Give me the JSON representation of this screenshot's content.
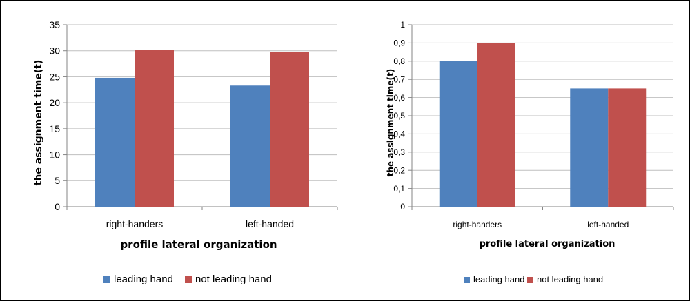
{
  "chart_data": [
    {
      "type": "bar",
      "categories": [
        "right-handers",
        "left-handed"
      ],
      "series": [
        {
          "name": "leading hand",
          "values": [
            24.8,
            23.3
          ]
        },
        {
          "name": "not leading hand",
          "values": [
            30.2,
            29.8
          ]
        }
      ],
      "yticks": [
        "0",
        "5",
        "10",
        "15",
        "20",
        "25",
        "30",
        "35"
      ],
      "ylim": [
        0,
        35
      ],
      "xlabel": "profile lateral organization",
      "ylabel": "the assignment time(t)",
      "grid": true,
      "legend_position": "bottom",
      "colors": [
        "#4F81BD",
        "#C0504D"
      ]
    },
    {
      "type": "bar",
      "categories": [
        "right-handers",
        "left-handed"
      ],
      "series": [
        {
          "name": "leading hand",
          "values": [
            0.8,
            0.65
          ]
        },
        {
          "name": "not leading hand",
          "values": [
            0.9,
            0.65
          ]
        }
      ],
      "yticks": [
        "0",
        "0,1",
        "0,2",
        "0,3",
        "0,4",
        "0,5",
        "0,6",
        "0,7",
        "0,8",
        "0,9",
        "1"
      ],
      "ylim": [
        0,
        1
      ],
      "xlabel": "profile lateral organization",
      "ylabel": "the assignment time(t)",
      "grid": true,
      "legend_position": "bottom",
      "colors": [
        "#4F81BD",
        "#C0504D"
      ]
    }
  ]
}
